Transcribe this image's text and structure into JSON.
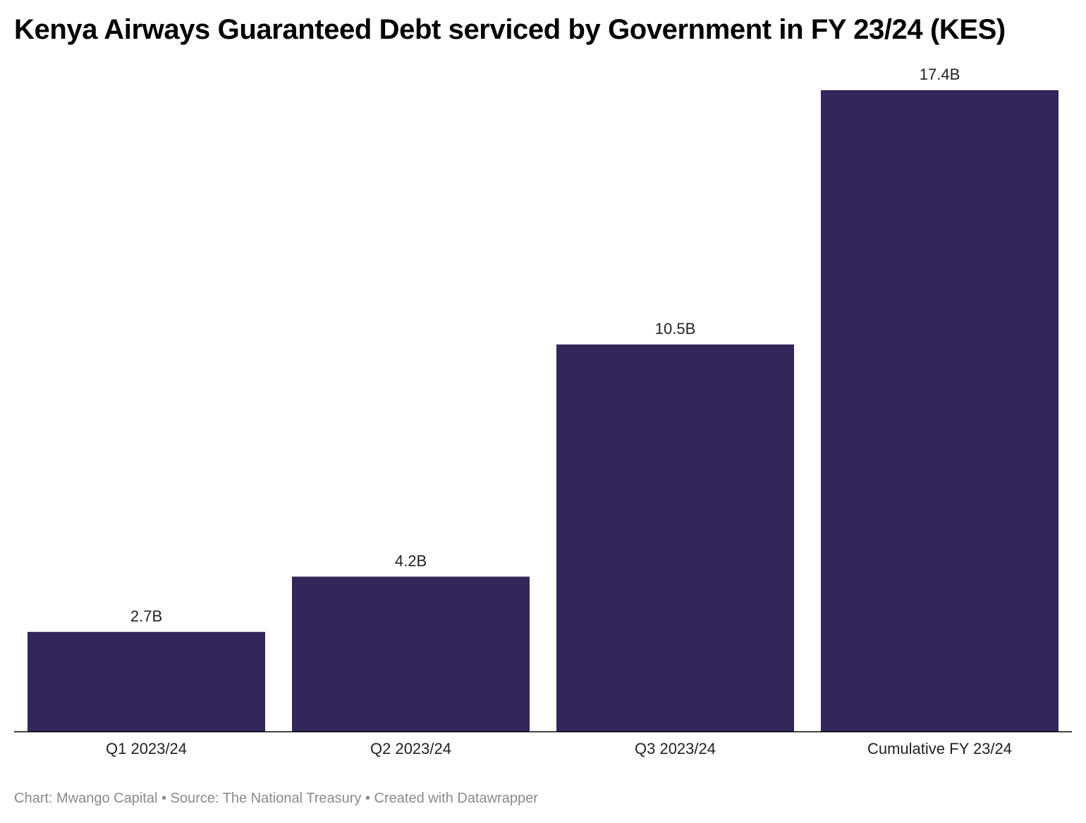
{
  "chart_data": {
    "type": "bar",
    "title": "Kenya Airways Guaranteed Debt serviced by Government in FY 23/24 (KES)",
    "categories": [
      "Q1 2023/24",
      "Q2 2023/24",
      "Q3 2023/24",
      "Cumulative FY 23/24"
    ],
    "values": [
      2.7,
      4.2,
      10.5,
      17.4
    ],
    "data_labels": [
      "2.7B",
      "4.2B",
      "10.5B",
      "17.4B"
    ],
    "ylim": [
      0,
      17.4
    ],
    "grid": false,
    "bar_color": "#32265a",
    "axis_color": "#000000"
  },
  "footer": {
    "credit": "Chart: Mwango Capital • Source: The National Treasury • Created with Datawrapper"
  }
}
